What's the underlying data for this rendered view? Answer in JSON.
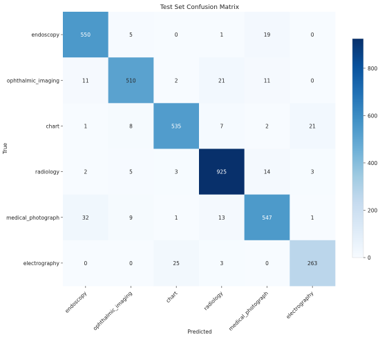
{
  "chart_data": {
    "type": "heatmap",
    "title": "Test Set Confusion Matrix",
    "xlabel": "Predicted",
    "ylabel": "True",
    "x_categories": [
      "endoscopy",
      "ophthalmic_imaging",
      "chart",
      "radiology",
      "medical_photograph",
      "electrography"
    ],
    "y_categories": [
      "endoscopy",
      "ophthalmic_imaging",
      "chart",
      "radiology",
      "medical_photograph",
      "electrography"
    ],
    "values": [
      [
        550,
        5,
        0,
        1,
        19,
        0
      ],
      [
        11,
        510,
        2,
        21,
        11,
        0
      ],
      [
        1,
        8,
        535,
        7,
        2,
        21
      ],
      [
        2,
        5,
        3,
        925,
        14,
        3
      ],
      [
        32,
        9,
        1,
        13,
        547,
        1
      ],
      [
        0,
        0,
        25,
        3,
        0,
        263
      ]
    ],
    "colormap": "Blues",
    "value_range": [
      0,
      925
    ],
    "colorbar_ticks": [
      0,
      200,
      400,
      600,
      800
    ],
    "colorbar_tick_labels": [
      "0",
      "200",
      "400",
      "600",
      "800"
    ],
    "annotations": true
  }
}
